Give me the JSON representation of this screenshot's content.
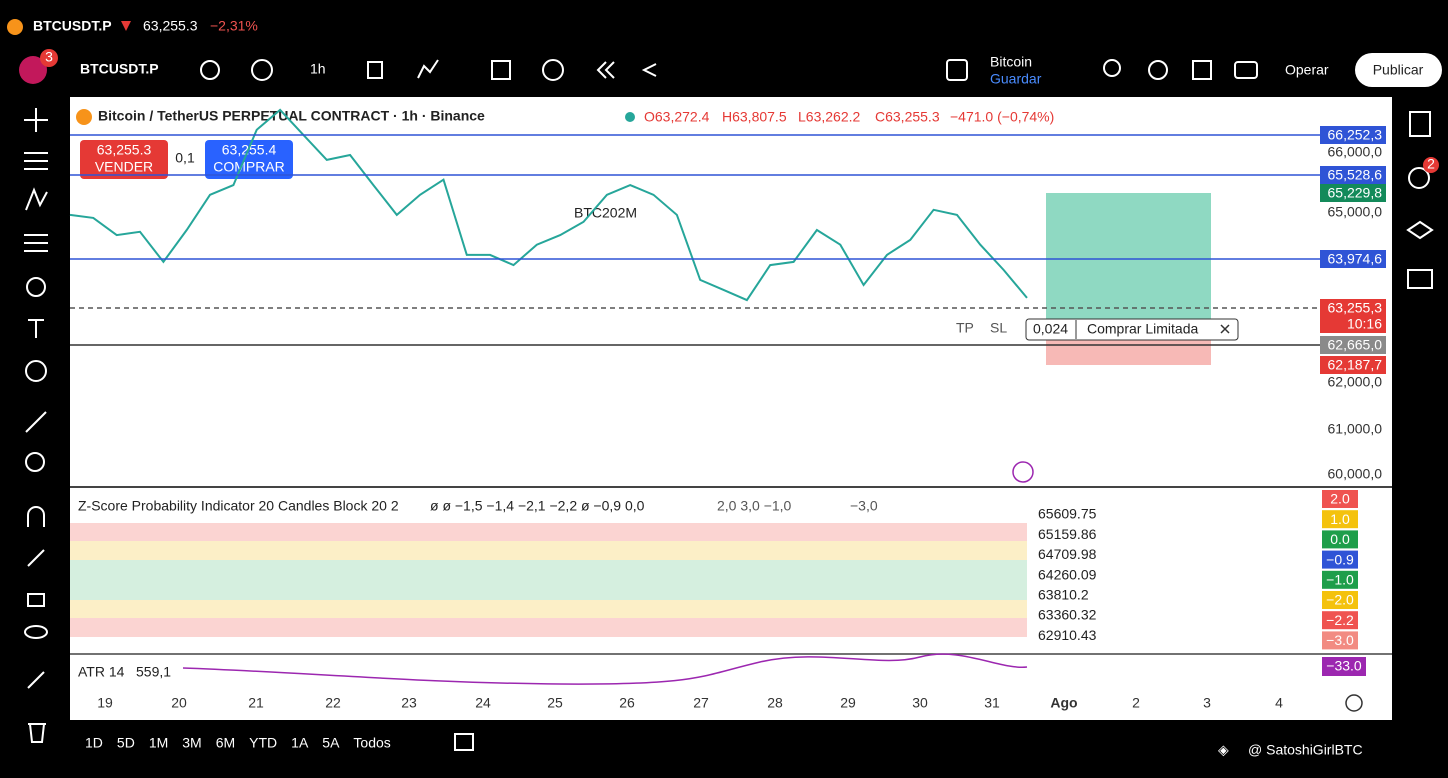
{
  "tab": {
    "symbol": "BTCUSDT.P",
    "price": "63,255.3",
    "change": "−2,31%"
  },
  "toolbar": {
    "badge": "3",
    "symbol": "BTCUSDT.P",
    "interval": "1h",
    "layout_name": "Bitcoin",
    "layout_save": "Guardar",
    "trade": "Operar",
    "publish": "Publicar"
  },
  "right_sidebar": {
    "alert_badge": "2"
  },
  "main_chart": {
    "title": "Bitcoin / TetherUS PERPETUAL CONTRACT · 1h · Binance",
    "ohlc": {
      "open": "O63,272.4",
      "high": "H63,807.5",
      "low": "L63,262.2",
      "close": "C63,255.3",
      "change": "−471.0 (−0,74%)"
    },
    "sell": {
      "price": "63,255.3",
      "label": "VENDER"
    },
    "spread": "0,1",
    "buy": {
      "price": "63,255.4",
      "label": "COMPRAR"
    },
    "annotation": "BTC202M",
    "order": {
      "tp": "TP",
      "sl": "SL",
      "qty": "0,024",
      "label": "Comprar Limitada"
    },
    "price_labels": [
      {
        "text": "66,252,3",
        "color": "#2f54d6"
      },
      {
        "text": "65,528,6",
        "color": "#2f54d6"
      },
      {
        "text": "65,229,8",
        "color": "#138a5a"
      },
      {
        "text": "63,974,6",
        "color": "#2f54d6"
      },
      {
        "text": "63,255,3",
        "color": "#e53935"
      },
      {
        "text": "10:16",
        "color": "#e53935"
      },
      {
        "text": "62,665,0",
        "color": "#8a8a8a"
      },
      {
        "text": "62,187,7",
        "color": "#e53935"
      }
    ],
    "price_axis": [
      "66,000,0",
      "65,000,0",
      "62,000,0",
      "61,000,0",
      "60,000,0"
    ],
    "ylim": [
      59780,
      67040
    ],
    "color": "#26a69a",
    "closes": [
      64845,
      64790,
      64470,
      64530,
      63970,
      64565,
      65220,
      65400,
      66430,
      66800,
      66335,
      65870,
      65960,
      65400,
      64845,
      65220,
      65500,
      64100,
      64100,
      63910,
      64290,
      64470,
      64715,
      65220,
      65400,
      65220,
      64845,
      63635,
      63450,
      63260,
      63910,
      63970,
      64565,
      64290,
      63540,
      64100,
      64380,
      64940,
      64845,
      64290,
      63820,
      63300
    ]
  },
  "zscore": {
    "title": "Z-Score Probability Indicator 20 Candles Block 20 2",
    "values": "ø ø −1,5 −1,4 −2,1 −2,2 ø −0,9 0,0",
    "values2": "2,0 3,0 −1,0",
    "values3": "−3,0",
    "levels": [
      "65609.75",
      "65159.86",
      "64709.98",
      "64260.09",
      "63810.2",
      "63360.32",
      "62910.43"
    ],
    "badges": [
      {
        "text": "2.0",
        "color": "#ef5350"
      },
      {
        "text": "1.0",
        "color": "#f4c20d"
      },
      {
        "text": "0.0",
        "color": "#1e9e4a"
      },
      {
        "text": "−0.9",
        "color": "#2f54d6"
      },
      {
        "text": "−1.0",
        "color": "#1e9e4a"
      },
      {
        "text": "−2.0",
        "color": "#f4c20d"
      },
      {
        "text": "−2.2",
        "color": "#ef5350"
      },
      {
        "text": "−3.0",
        "color": "#f28b82"
      }
    ]
  },
  "atr": {
    "label": "ATR 14",
    "value": "559,1",
    "badge": "−33.0"
  },
  "time_axis": [
    "19",
    "20",
    "21",
    "22",
    "23",
    "24",
    "25",
    "26",
    "27",
    "28",
    "29",
    "30",
    "31",
    "Ago",
    "2",
    "3",
    "4"
  ],
  "ranges": [
    "1D",
    "5D",
    "1M",
    "3M",
    "6M",
    "YTD",
    "1A",
    "5A",
    "Todos"
  ],
  "watermark": "@ SatoshiGirlBTC"
}
